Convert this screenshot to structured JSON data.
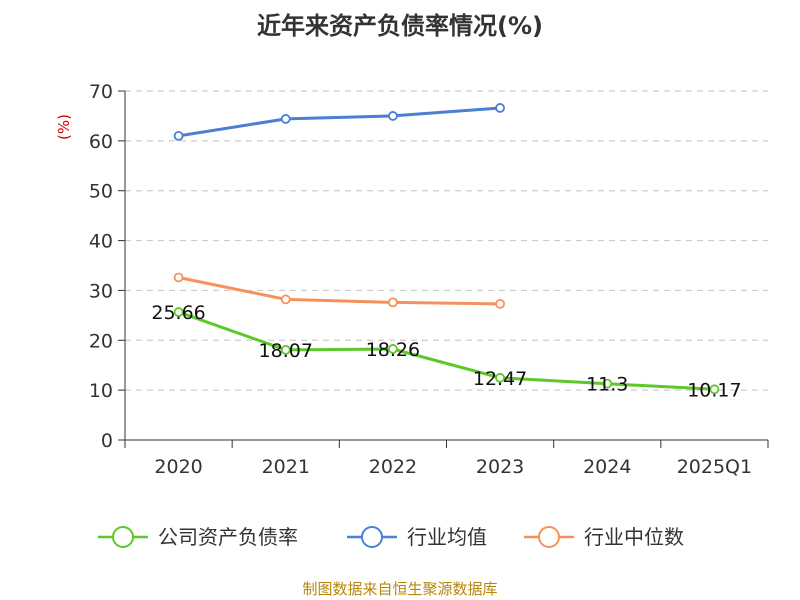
{
  "chart_data": {
    "type": "line",
    "title": "近年来资产负债率情况(%)",
    "ylabel": "(%)",
    "xlabel": "",
    "categories": [
      "2020",
      "2021",
      "2022",
      "2023",
      "2024",
      "2025Q1"
    ],
    "ylim": [
      0,
      70
    ],
    "yticks": [
      0,
      10,
      20,
      30,
      40,
      50,
      60,
      70
    ],
    "grid": true,
    "legend_position": "bottom",
    "series": [
      {
        "name": "公司资产负债率",
        "color": "#5cc82a",
        "values": [
          25.66,
          18.07,
          18.26,
          12.47,
          11.3,
          10.17
        ],
        "labels": [
          "25.66",
          "18.07",
          "18.26",
          "12.47",
          "11.3",
          "10.17"
        ]
      },
      {
        "name": "行业均值",
        "color": "#4a7fd6",
        "values": [
          61.0,
          64.4,
          65.0,
          66.6,
          null,
          null
        ]
      },
      {
        "name": "行业中位数",
        "color": "#f7915a",
        "values": [
          32.6,
          28.2,
          27.6,
          27.3,
          null,
          null
        ]
      }
    ]
  },
  "source_note": "制图数据来自恒生聚源数据库"
}
